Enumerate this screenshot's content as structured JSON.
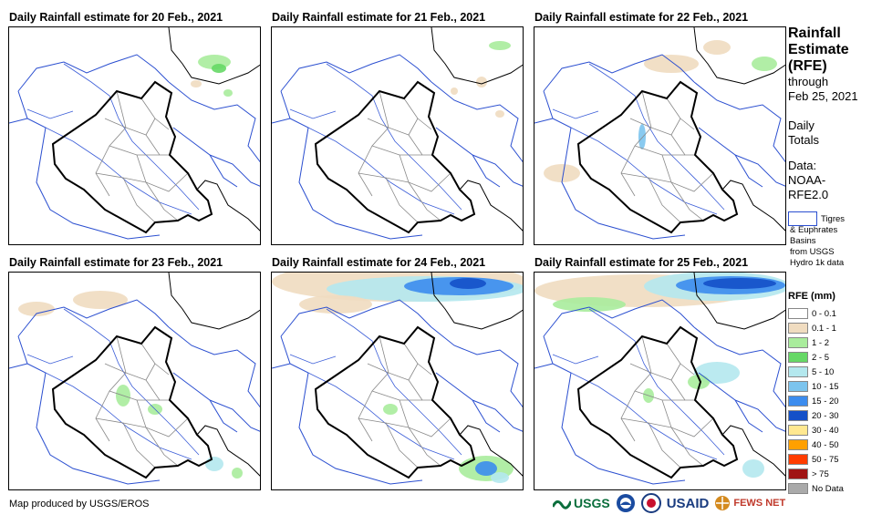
{
  "panels": [
    {
      "title": "Daily Rainfall estimate for 20 Feb., 2021",
      "rain": "low-north"
    },
    {
      "title": "Daily Rainfall estimate for 21 Feb., 2021",
      "rain": "minimal"
    },
    {
      "title": "Daily Rainfall estimate for 22 Feb., 2021",
      "rain": "north-east"
    },
    {
      "title": "Daily Rainfall estimate for 23 Feb., 2021",
      "rain": "scattered"
    },
    {
      "title": "Daily Rainfall estimate for 24 Feb., 2021",
      "rain": "heavy-north"
    },
    {
      "title": "Daily Rainfall estimate for 25 Feb., 2021",
      "rain": "heavy-northeast"
    }
  ],
  "side": {
    "title_lines": [
      "Rainfall",
      "Estimate",
      "(RFE)"
    ],
    "through": "through",
    "date": "Feb 25, 2021",
    "totals_lines": [
      "Daily",
      "Totals"
    ],
    "data_lines": [
      "Data:",
      "NOAA-",
      "RFE2.0"
    ],
    "basin_lines": [
      "Tigres",
      "& Euphrates",
      "Basins",
      "from USGS",
      "Hydro 1k data"
    ],
    "rfe_title": "RFE (mm)"
  },
  "legend": [
    {
      "label": "0 - 0.1",
      "color": "#ffffff"
    },
    {
      "label": "0.1 - 1",
      "color": "#f0dcc0"
    },
    {
      "label": "1 - 2",
      "color": "#a9ec9c"
    },
    {
      "label": "2 - 5",
      "color": "#66d866"
    },
    {
      "label": "5 - 10",
      "color": "#b4e8ee"
    },
    {
      "label": "10 - 15",
      "color": "#7cc4ee"
    },
    {
      "label": "15 - 20",
      "color": "#3c8cee"
    },
    {
      "label": "20 - 30",
      "color": "#1450c8"
    },
    {
      "label": "30 - 40",
      "color": "#ffe890"
    },
    {
      "label": "40 - 50",
      "color": "#ffa000"
    },
    {
      "label": "50 - 75",
      "color": "#ff3c00"
    },
    {
      "label": "> 75",
      "color": "#a01414"
    },
    {
      "label": "No Data",
      "color": "#aaaaaa"
    }
  ],
  "footer": "Map produced by USGS/EROS",
  "logos": {
    "usgs": "USGS",
    "usaid": "USAID",
    "fews": "FEWS NET"
  }
}
